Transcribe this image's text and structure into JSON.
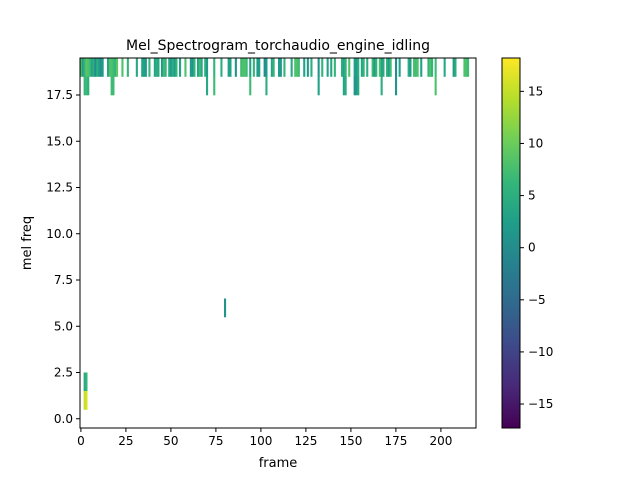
{
  "chart_data": {
    "type": "heatmap",
    "title": "Mel_Spectrogram_torchaudio_engine_idling",
    "xlabel": "frame",
    "ylabel": "mel freq",
    "xlim": [
      -0.5,
      219.5
    ],
    "ylim": [
      -0.5,
      19.5
    ],
    "x_ticks": [
      0,
      25,
      50,
      75,
      100,
      125,
      150,
      175,
      200
    ],
    "x_tick_labels": [
      "0",
      "25",
      "50",
      "75",
      "100",
      "125",
      "150",
      "175",
      "200"
    ],
    "y_ticks": [
      0.0,
      2.5,
      5.0,
      7.5,
      10.0,
      12.5,
      15.0,
      17.5
    ],
    "y_tick_labels": [
      "0.0",
      "2.5",
      "5.0",
      "7.5",
      "10.0",
      "12.5",
      "15.0",
      "17.5"
    ],
    "colorbar": {
      "colormap": "viridis",
      "vmin": -17.3,
      "vmax": 18.2,
      "ticks": [
        -15,
        -10,
        -5,
        0,
        5,
        10,
        15
      ],
      "tick_labels": [
        "−15",
        "−10",
        "−5",
        "0",
        "5",
        "10",
        "15"
      ],
      "stops": [
        "#440154",
        "#482878",
        "#3e4989",
        "#31688e",
        "#26828e",
        "#1f9e89",
        "#35b779",
        "#6ece58",
        "#b5de2b",
        "#fde725"
      ]
    },
    "cells": [
      {
        "x": 0,
        "y": 19,
        "v": 8
      },
      {
        "x": 1,
        "y": 19,
        "v": 2
      },
      {
        "x": 2,
        "y": 19,
        "v": 6
      },
      {
        "x": 3,
        "y": 19,
        "v": 9
      },
      {
        "x": 2,
        "y": 18,
        "v": 6
      },
      {
        "x": 3,
        "y": 18,
        "v": 7
      },
      {
        "x": 4,
        "y": 18,
        "v": 5
      },
      {
        "x": 4,
        "y": 19,
        "v": 8
      },
      {
        "x": 5,
        "y": 19,
        "v": 7
      },
      {
        "x": 6,
        "y": 19,
        "v": 3
      },
      {
        "x": 7,
        "y": 19,
        "v": 5
      },
      {
        "x": 8,
        "y": 19,
        "v": 0
      },
      {
        "x": 9,
        "y": 19,
        "v": 5
      },
      {
        "x": 10,
        "y": 19,
        "v": 3
      },
      {
        "x": 11,
        "y": 19,
        "v": 0
      },
      {
        "x": 12,
        "y": 19,
        "v": 2
      },
      {
        "x": 15,
        "y": 19,
        "v": 3
      },
      {
        "x": 16,
        "y": 19,
        "v": 8
      },
      {
        "x": 17,
        "y": 19,
        "v": 8
      },
      {
        "x": 18,
        "y": 19,
        "v": 7
      },
      {
        "x": 17,
        "y": 18,
        "v": 7
      },
      {
        "x": 18,
        "y": 18,
        "v": 7
      },
      {
        "x": 19,
        "y": 19,
        "v": 6
      },
      {
        "x": 20,
        "y": 19,
        "v": 9
      },
      {
        "x": 23,
        "y": 19,
        "v": 8
      },
      {
        "x": 26,
        "y": 19,
        "v": 6
      },
      {
        "x": 31,
        "y": 19,
        "v": 4
      },
      {
        "x": 34,
        "y": 19,
        "v": 3
      },
      {
        "x": 35,
        "y": 19,
        "v": 3
      },
      {
        "x": 36,
        "y": 19,
        "v": 2
      },
      {
        "x": 38,
        "y": 19,
        "v": 6
      },
      {
        "x": 41,
        "y": 19,
        "v": 3
      },
      {
        "x": 42,
        "y": 19,
        "v": 5
      },
      {
        "x": 43,
        "y": 19,
        "v": 4
      },
      {
        "x": 45,
        "y": 19,
        "v": 2
      },
      {
        "x": 46,
        "y": 19,
        "v": 7
      },
      {
        "x": 47,
        "y": 19,
        "v": 6
      },
      {
        "x": 49,
        "y": 19,
        "v": 4
      },
      {
        "x": 50,
        "y": 19,
        "v": 2
      },
      {
        "x": 51,
        "y": 19,
        "v": 5
      },
      {
        "x": 52,
        "y": 19,
        "v": 2
      },
      {
        "x": 53,
        "y": 19,
        "v": 6
      },
      {
        "x": 55,
        "y": 19,
        "v": 3
      },
      {
        "x": 58,
        "y": 19,
        "v": 8
      },
      {
        "x": 61,
        "y": 19,
        "v": 2
      },
      {
        "x": 62,
        "y": 19,
        "v": 1
      },
      {
        "x": 63,
        "y": 19,
        "v": 6
      },
      {
        "x": 65,
        "y": 19,
        "v": 3
      },
      {
        "x": 66,
        "y": 19,
        "v": 7
      },
      {
        "x": 67,
        "y": 19,
        "v": 4
      },
      {
        "x": 69,
        "y": 19,
        "v": 5
      },
      {
        "x": 70,
        "y": 19,
        "v": 2
      },
      {
        "x": 70,
        "y": 18,
        "v": 4
      },
      {
        "x": 74,
        "y": 19,
        "v": 6
      },
      {
        "x": 74,
        "y": 18,
        "v": 7
      },
      {
        "x": 78,
        "y": 19,
        "v": 5
      },
      {
        "x": 82,
        "y": 19,
        "v": 3
      },
      {
        "x": 83,
        "y": 19,
        "v": 3
      },
      {
        "x": 86,
        "y": 19,
        "v": 1
      },
      {
        "x": 89,
        "y": 19,
        "v": 7
      },
      {
        "x": 90,
        "y": 19,
        "v": 8
      },
      {
        "x": 91,
        "y": 19,
        "v": 8
      },
      {
        "x": 92,
        "y": 19,
        "v": 7
      },
      {
        "x": 94,
        "y": 19,
        "v": 3
      },
      {
        "x": 94,
        "y": 18,
        "v": 7
      },
      {
        "x": 96,
        "y": 19,
        "v": 6
      },
      {
        "x": 98,
        "y": 19,
        "v": 2
      },
      {
        "x": 99,
        "y": 19,
        "v": 3
      },
      {
        "x": 102,
        "y": 19,
        "v": 0
      },
      {
        "x": 103,
        "y": 19,
        "v": 2
      },
      {
        "x": 103,
        "y": 18,
        "v": 5
      },
      {
        "x": 106,
        "y": 19,
        "v": 3
      },
      {
        "x": 107,
        "y": 19,
        "v": 6
      },
      {
        "x": 110,
        "y": 19,
        "v": 2
      },
      {
        "x": 111,
        "y": 19,
        "v": 2
      },
      {
        "x": 113,
        "y": 19,
        "v": 6
      },
      {
        "x": 117,
        "y": 19,
        "v": 4
      },
      {
        "x": 119,
        "y": 19,
        "v": 8
      },
      {
        "x": 120,
        "y": 19,
        "v": 8
      },
      {
        "x": 121,
        "y": 19,
        "v": 7
      },
      {
        "x": 124,
        "y": 19,
        "v": 3
      },
      {
        "x": 126,
        "y": 19,
        "v": 2
      },
      {
        "x": 128,
        "y": 19,
        "v": 5
      },
      {
        "x": 132,
        "y": 19,
        "v": 1
      },
      {
        "x": 132,
        "y": 18,
        "v": 3
      },
      {
        "x": 134,
        "y": 19,
        "v": 6
      },
      {
        "x": 137,
        "y": 19,
        "v": 3
      },
      {
        "x": 139,
        "y": 19,
        "v": 4
      },
      {
        "x": 141,
        "y": 19,
        "v": 6
      },
      {
        "x": 145,
        "y": 19,
        "v": 5
      },
      {
        "x": 146,
        "y": 19,
        "v": 3
      },
      {
        "x": 146,
        "y": 18,
        "v": 3
      },
      {
        "x": 147,
        "y": 19,
        "v": 6
      },
      {
        "x": 147,
        "y": 18,
        "v": 5
      },
      {
        "x": 149,
        "y": 19,
        "v": 8
      },
      {
        "x": 152,
        "y": 19,
        "v": 3
      },
      {
        "x": 152,
        "y": 18,
        "v": 1
      },
      {
        "x": 153,
        "y": 19,
        "v": 2
      },
      {
        "x": 153,
        "y": 18,
        "v": 2
      },
      {
        "x": 154,
        "y": 19,
        "v": 5
      },
      {
        "x": 154,
        "y": 18,
        "v": 4
      },
      {
        "x": 156,
        "y": 19,
        "v": 3
      },
      {
        "x": 157,
        "y": 19,
        "v": 6
      },
      {
        "x": 159,
        "y": 19,
        "v": 5
      },
      {
        "x": 162,
        "y": 19,
        "v": 7
      },
      {
        "x": 163,
        "y": 19,
        "v": 2
      },
      {
        "x": 164,
        "y": 19,
        "v": 6
      },
      {
        "x": 166,
        "y": 19,
        "v": 8
      },
      {
        "x": 167,
        "y": 19,
        "v": 3
      },
      {
        "x": 167,
        "y": 18,
        "v": 5
      },
      {
        "x": 168,
        "y": 19,
        "v": 4
      },
      {
        "x": 170,
        "y": 19,
        "v": 6
      },
      {
        "x": 171,
        "y": 19,
        "v": 2
      },
      {
        "x": 172,
        "y": 19,
        "v": 7
      },
      {
        "x": 175,
        "y": 19,
        "v": 0
      },
      {
        "x": 175,
        "y": 18,
        "v": 1
      },
      {
        "x": 177,
        "y": 19,
        "v": 3
      },
      {
        "x": 182,
        "y": 19,
        "v": 5
      },
      {
        "x": 183,
        "y": 19,
        "v": 2
      },
      {
        "x": 185,
        "y": 19,
        "v": 8
      },
      {
        "x": 186,
        "y": 19,
        "v": 7
      },
      {
        "x": 187,
        "y": 19,
        "v": 8
      },
      {
        "x": 189,
        "y": 19,
        "v": 3
      },
      {
        "x": 193,
        "y": 19,
        "v": 6
      },
      {
        "x": 194,
        "y": 19,
        "v": 8
      },
      {
        "x": 195,
        "y": 19,
        "v": 6
      },
      {
        "x": 197,
        "y": 19,
        "v": 7
      },
      {
        "x": 197,
        "y": 18,
        "v": 8
      },
      {
        "x": 202,
        "y": 19,
        "v": 4
      },
      {
        "x": 207,
        "y": 19,
        "v": 2
      },
      {
        "x": 208,
        "y": 19,
        "v": 5
      },
      {
        "x": 213,
        "y": 19,
        "v": 8
      },
      {
        "x": 214,
        "y": 19,
        "v": 8
      },
      {
        "x": 215,
        "y": 19,
        "v": 7
      },
      {
        "x": 80,
        "y": 6,
        "v": 1
      },
      {
        "x": 2,
        "y": 2,
        "v": 4
      },
      {
        "x": 3,
        "y": 2,
        "v": 6
      },
      {
        "x": 2,
        "y": 1,
        "v": 15
      },
      {
        "x": 3,
        "y": 1,
        "v": 16
      }
    ]
  }
}
